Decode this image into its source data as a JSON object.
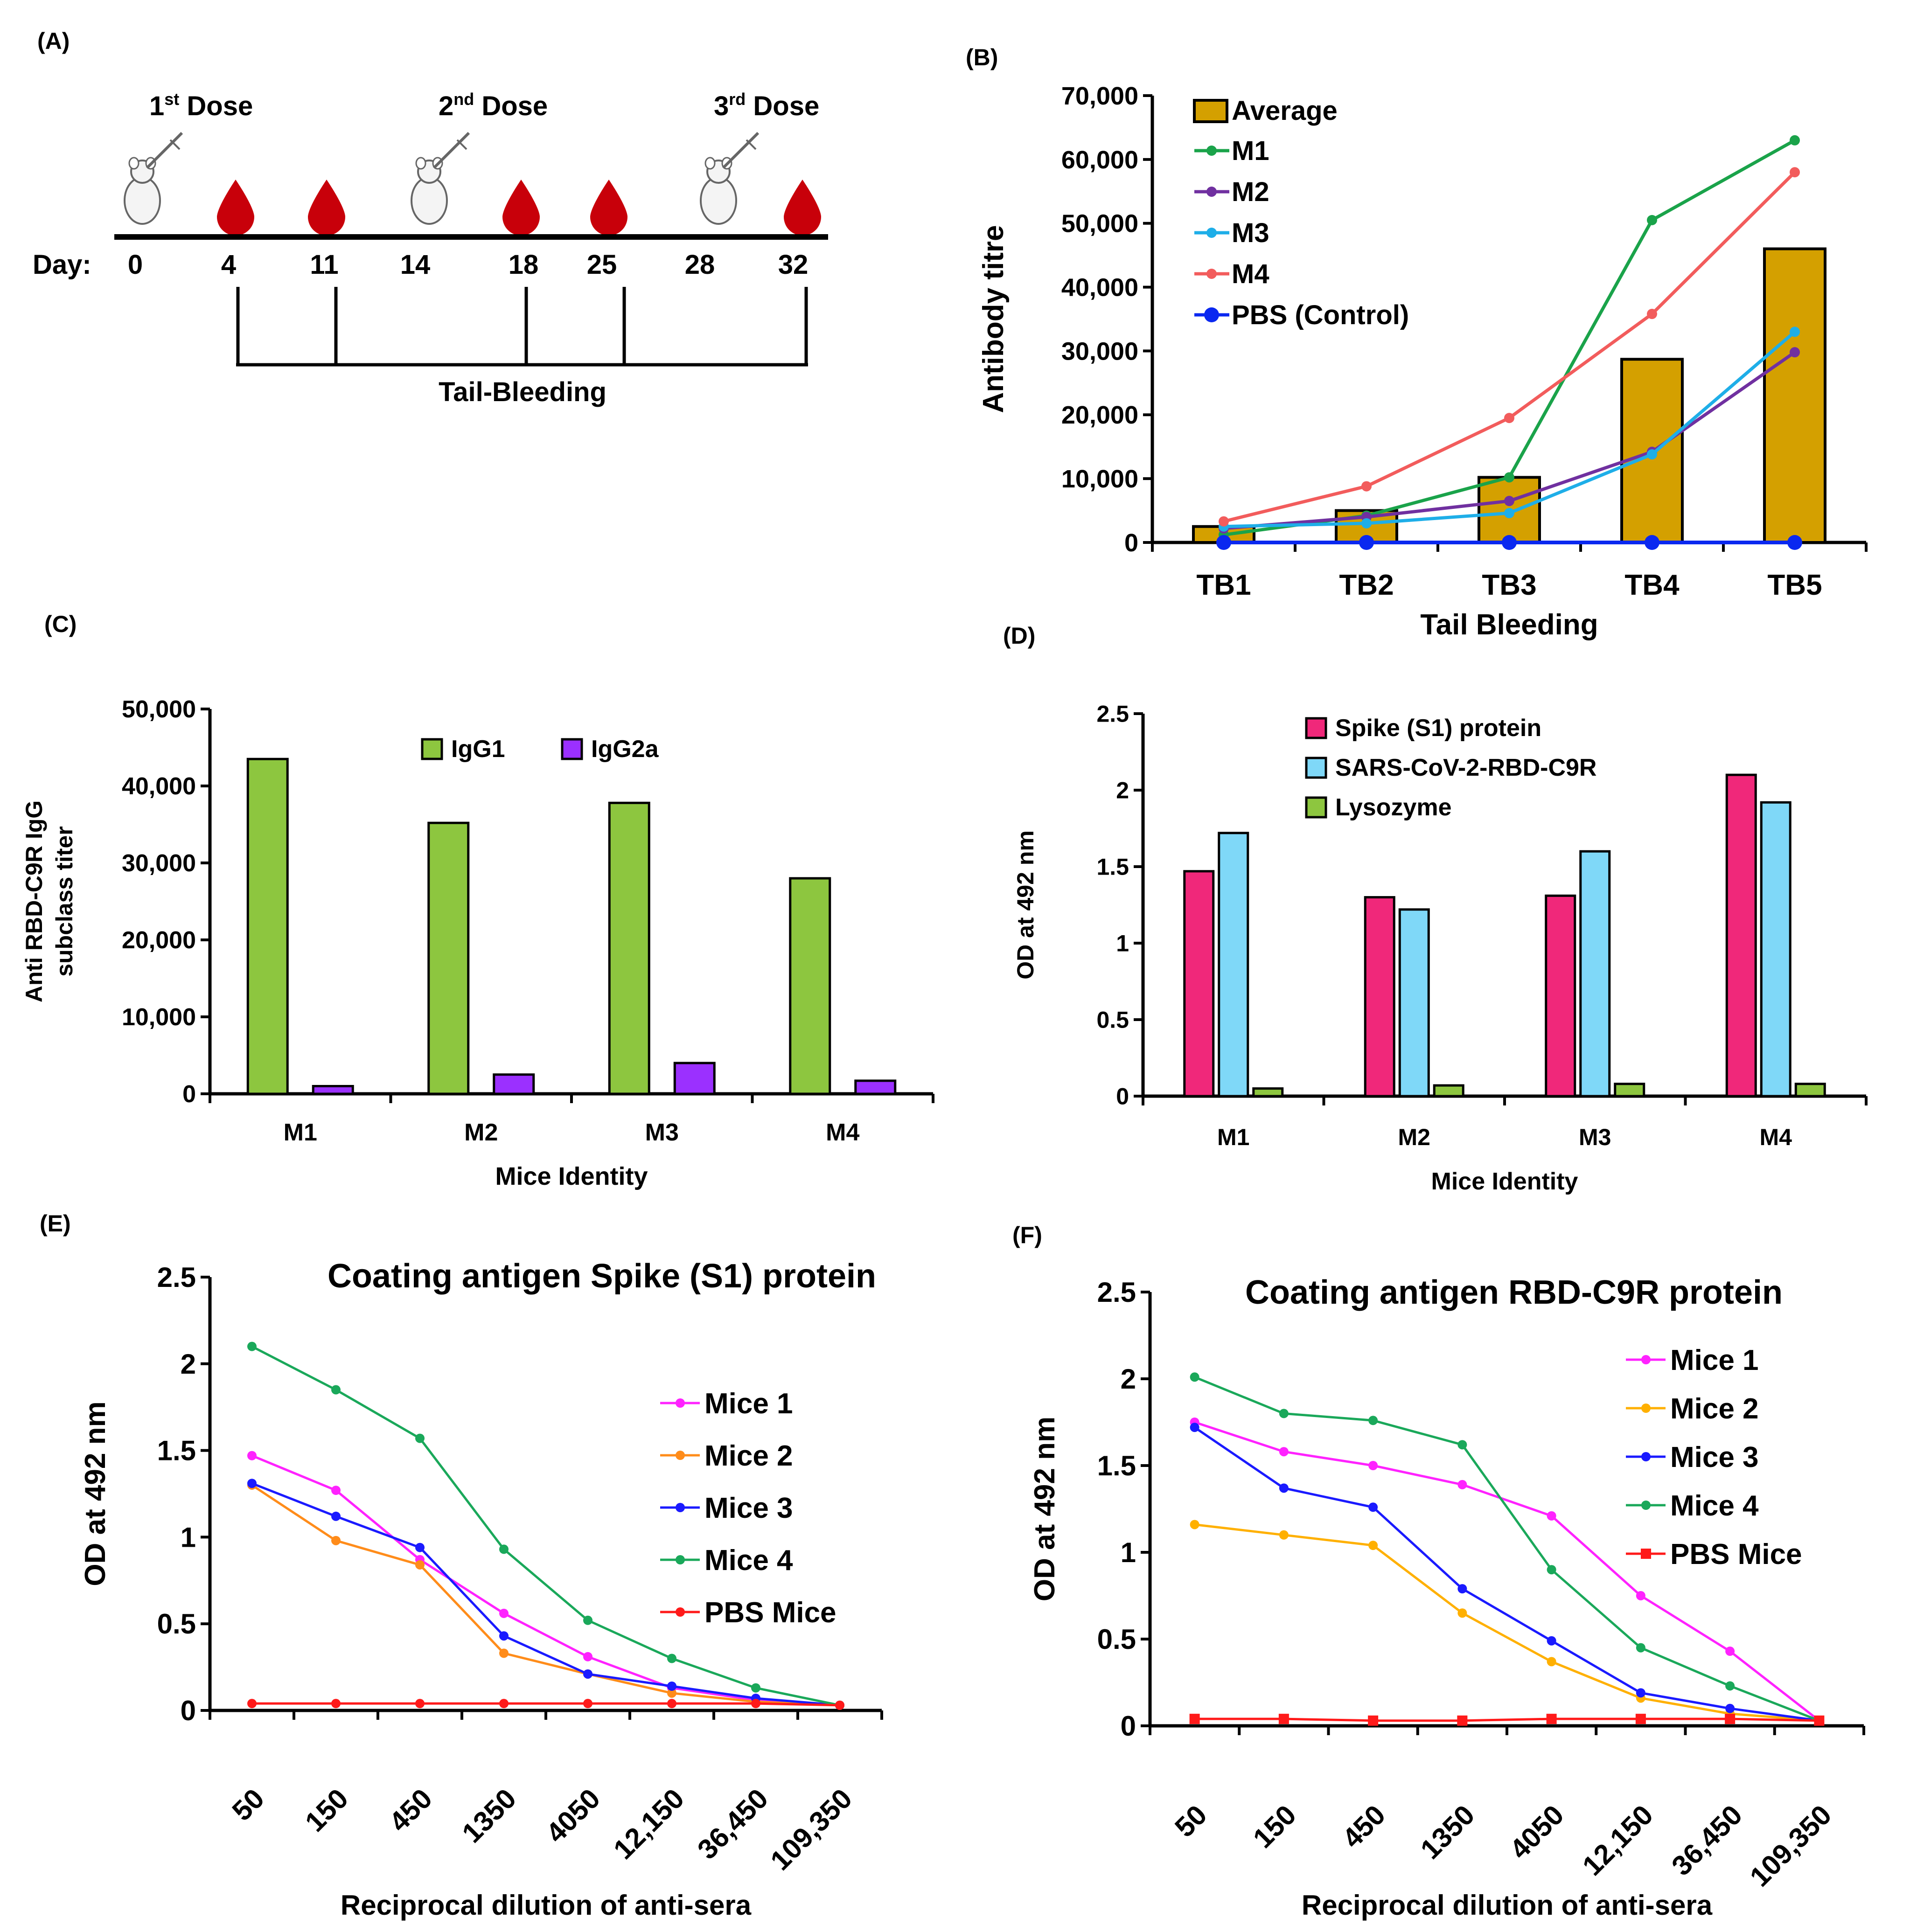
{
  "panels": {
    "A": {
      "label": "(A)",
      "doses": [
        {
          "num": "1",
          "sup": "st",
          "word": " Dose"
        },
        {
          "num": "2",
          "sup": "nd",
          "word": " Dose"
        },
        {
          "num": "3",
          "sup": "rd",
          "word": " Dose"
        }
      ],
      "day_label": "Day:",
      "days": [
        "0",
        "4",
        "11",
        "14",
        "18",
        "25",
        "28",
        "32"
      ],
      "bleeding_label": "Tail-Bleeding",
      "colors": {
        "blood": "#c8000a",
        "timeline": "#000000"
      }
    },
    "B": {
      "label": "(B)"
    },
    "C": {
      "label": "(C)"
    },
    "D": {
      "label": "(D)"
    },
    "E": {
      "label": "(E)"
    },
    "F": {
      "label": "(F)"
    }
  },
  "chart_data": [
    {
      "id": "B",
      "type": "bar+line",
      "title": "",
      "xlabel": "Tail Bleeding",
      "ylabel": "Antibody titre",
      "categories": [
        "TB1",
        "TB2",
        "TB3",
        "TB4",
        "TB5"
      ],
      "ylim": [
        0,
        70000
      ],
      "yticks": [
        "0",
        "10,000",
        "20,000",
        "30,000",
        "40,000",
        "50,000",
        "60,000",
        "70,000"
      ],
      "bars": {
        "name": "Average",
        "color": "#d4a000",
        "values": [
          2500,
          5000,
          10200,
          28700,
          46000
        ]
      },
      "series": [
        {
          "name": "M1",
          "color": "#1aa34a",
          "values": [
            1200,
            4200,
            10200,
            50500,
            63000
          ]
        },
        {
          "name": "M2",
          "color": "#7030a0",
          "values": [
            2200,
            4000,
            6500,
            14200,
            29800
          ]
        },
        {
          "name": "M3",
          "color": "#1eaee8",
          "values": [
            2500,
            3000,
            4600,
            13800,
            33000
          ]
        },
        {
          "name": "M4",
          "color": "#f25c5c",
          "values": [
            3300,
            8800,
            19500,
            35800,
            58000
          ]
        },
        {
          "name": "PBS (Control)",
          "color": "#0a28f0",
          "values": [
            0,
            0,
            0,
            0,
            0
          ]
        }
      ],
      "legend": "top-left"
    },
    {
      "id": "C",
      "type": "bar",
      "title": "",
      "xlabel": "Mice Identity",
      "ylabel_lines": [
        "Anti RBD-C9R IgG",
        "subclass titer"
      ],
      "categories": [
        "M1",
        "M2",
        "M3",
        "M4"
      ],
      "ylim": [
        0,
        50000
      ],
      "yticks": [
        "0",
        "10,000",
        "20,000",
        "30,000",
        "40,000",
        "50,000"
      ],
      "series": [
        {
          "name": "IgG1",
          "color": "#8dc63f",
          "values": [
            43500,
            35200,
            37800,
            28000
          ]
        },
        {
          "name": "IgG2a",
          "color": "#9b30ff",
          "values": [
            1000,
            2500,
            4000,
            1700
          ]
        }
      ],
      "legend": "top-center"
    },
    {
      "id": "D",
      "type": "bar",
      "title": "",
      "xlabel": "Mice Identity",
      "ylabel": "OD at 492 nm",
      "categories": [
        "M1",
        "M2",
        "M3",
        "M4"
      ],
      "ylim": [
        0,
        2.5
      ],
      "yticks": [
        "0",
        "0.5",
        "1",
        "1.5",
        "2",
        "2.5"
      ],
      "series": [
        {
          "name": "Spike (S1) protein",
          "color": "#f0287a",
          "values": [
            1.47,
            1.3,
            1.31,
            2.1
          ]
        },
        {
          "name": "SARS-CoV-2-RBD-C9R",
          "color": "#7fd8f8",
          "values": [
            1.72,
            1.22,
            1.6,
            1.92
          ]
        },
        {
          "name": "Lysozyme",
          "color": "#8dc63f",
          "values": [
            0.05,
            0.07,
            0.08,
            0.08
          ]
        }
      ],
      "legend": "top-center"
    },
    {
      "id": "E",
      "type": "line",
      "title": "Coating antigen Spike (S1) protein",
      "xlabel": "Reciprocal dilution of anti-sera",
      "ylabel": "OD at 492 nm",
      "categories": [
        "50",
        "150",
        "450",
        "1350",
        "4050",
        "12,150",
        "36,450",
        "109,350"
      ],
      "ylim": [
        0,
        2.5
      ],
      "yticks": [
        "0",
        "0.5",
        "1",
        "1.5",
        "2",
        "2.5"
      ],
      "series": [
        {
          "name": "Mice 1",
          "color": "#ff22ff",
          "marker": "circle",
          "values": [
            1.47,
            1.27,
            0.87,
            0.56,
            0.31,
            0.13,
            0.06,
            0.03
          ]
        },
        {
          "name": "Mice 2",
          "color": "#ff8c1a",
          "marker": "circle",
          "values": [
            1.3,
            0.98,
            0.84,
            0.33,
            0.21,
            0.1,
            0.05,
            0.03
          ]
        },
        {
          "name": "Mice 3",
          "color": "#1a1aff",
          "marker": "circle",
          "values": [
            1.31,
            1.12,
            0.94,
            0.43,
            0.21,
            0.14,
            0.07,
            0.03
          ]
        },
        {
          "name": "Mice 4",
          "color": "#1aa85a",
          "marker": "circle",
          "values": [
            2.1,
            1.85,
            1.57,
            0.93,
            0.52,
            0.3,
            0.13,
            0.03
          ]
        },
        {
          "name": "PBS Mice",
          "color": "#ff1a1a",
          "marker": "circle",
          "values": [
            0.04,
            0.04,
            0.04,
            0.04,
            0.04,
            0.04,
            0.04,
            0.03
          ]
        }
      ],
      "legend": "right"
    },
    {
      "id": "F",
      "type": "line",
      "title": "Coating antigen RBD-C9R protein",
      "xlabel": "Reciprocal dilution of anti-sera",
      "ylabel": "OD at 492 nm",
      "categories": [
        "50",
        "150",
        "450",
        "1350",
        "4050",
        "12,150",
        "36,450",
        "109,350"
      ],
      "ylim": [
        0,
        2.5
      ],
      "yticks": [
        "0",
        "0.5",
        "1",
        "1.5",
        "2",
        "2.5"
      ],
      "series": [
        {
          "name": "Mice 1",
          "color": "#ff22ff",
          "marker": "circle",
          "values": [
            1.75,
            1.58,
            1.5,
            1.39,
            1.21,
            0.75,
            0.43,
            0.03
          ]
        },
        {
          "name": "Mice 2",
          "color": "#ffb000",
          "marker": "circle",
          "values": [
            1.16,
            1.1,
            1.04,
            0.65,
            0.37,
            0.16,
            0.07,
            0.03
          ]
        },
        {
          "name": "Mice 3",
          "color": "#1a1aff",
          "marker": "circle",
          "values": [
            1.72,
            1.37,
            1.26,
            0.79,
            0.49,
            0.19,
            0.1,
            0.03
          ]
        },
        {
          "name": "Mice 4",
          "color": "#1aa85a",
          "marker": "circle",
          "values": [
            2.01,
            1.8,
            1.76,
            1.62,
            0.9,
            0.45,
            0.23,
            0.03
          ]
        },
        {
          "name": "PBS Mice",
          "color": "#ff1a1a",
          "marker": "square",
          "values": [
            0.04,
            0.04,
            0.03,
            0.03,
            0.04,
            0.04,
            0.04,
            0.03
          ]
        }
      ],
      "legend": "right"
    }
  ]
}
